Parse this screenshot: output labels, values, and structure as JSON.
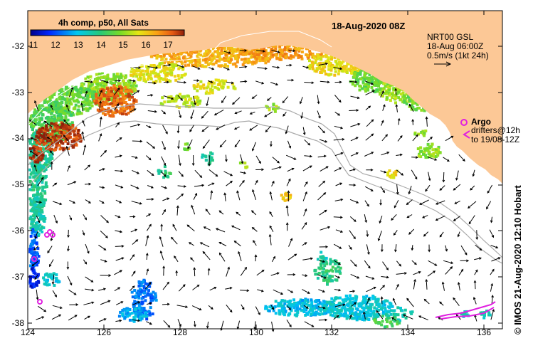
{
  "title": "18-Aug-2020 08Z",
  "colorbar": {
    "label": "4h comp, p50, All Sats",
    "ticks": [
      "11",
      "12",
      "13",
      "14",
      "15",
      "16",
      "17"
    ],
    "vmin": 10.8,
    "vmax": 18.0
  },
  "current_info": {
    "line1": "NRT00 GSL",
    "line2": "18-Aug 06:00Z",
    "line3": "0.5m/s (1kt 24h)"
  },
  "legend": {
    "argo": "Argo",
    "drifters_line1": "drifters@12h",
    "drifters_line2": "to 19/08-12Z"
  },
  "credit": "© IMOS 21-Aug-2020 12:10 Hobart",
  "axes": {
    "x_ticks": [
      "124",
      "126",
      "128",
      "130",
      "132",
      "134",
      "136"
    ],
    "y_ticks": [
      "-32",
      "-33",
      "-34",
      "-35",
      "-36",
      "-37",
      "-38"
    ],
    "lon_range": [
      124,
      136.5
    ],
    "lat_range": [
      -38.1,
      -31.4
    ]
  },
  "colors": {
    "land": "#fcc896",
    "ocean": "#ffffff",
    "argo": "#e020e0",
    "contour": "#aaaaaa",
    "arrow": "#000000"
  }
}
